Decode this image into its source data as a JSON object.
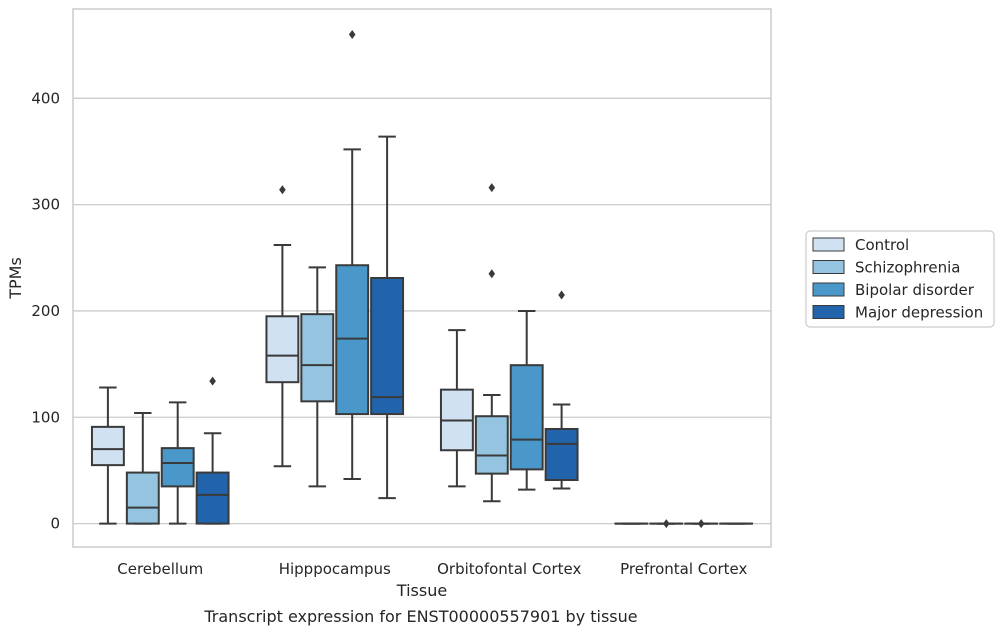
{
  "chart_data": {
    "type": "box",
    "xlabel": "Tissue",
    "ylabel": "TPMs",
    "caption": "Transcript expression for ENST00000557901 by tissue",
    "ylim": [
      -22,
      484
    ],
    "yticks": [
      0,
      100,
      200,
      300,
      400
    ],
    "grid": true,
    "legend_position": "right",
    "categories": [
      "Cerebellum",
      "Hipppocampus",
      "Orbitofontal Cortex",
      "Prefrontal Cortex"
    ],
    "series": [
      {
        "name": "Control",
        "color": "#d0e1f2",
        "boxes": [
          {
            "whislo": 0,
            "q1": 55,
            "med": 70,
            "q3": 91,
            "whishi": 128,
            "fliers": []
          },
          {
            "whislo": 54,
            "q1": 133,
            "med": 158,
            "q3": 195,
            "whishi": 262,
            "fliers": [
              314
            ]
          },
          {
            "whislo": 35,
            "q1": 69,
            "med": 97,
            "q3": 126,
            "whishi": 182,
            "fliers": []
          },
          {
            "whislo": 0,
            "q1": 0,
            "med": 0,
            "q3": 0,
            "whishi": 0,
            "fliers": []
          }
        ]
      },
      {
        "name": "Schizophrenia",
        "color": "#94c4df",
        "boxes": [
          {
            "whislo": 0,
            "q1": 0,
            "med": 15,
            "q3": 48,
            "whishi": 104,
            "fliers": []
          },
          {
            "whislo": 35,
            "q1": 115,
            "med": 149,
            "q3": 197,
            "whishi": 241,
            "fliers": []
          },
          {
            "whislo": 21,
            "q1": 47,
            "med": 64,
            "q3": 101,
            "whishi": 121,
            "fliers": [
              235,
              316
            ]
          },
          {
            "whislo": 0,
            "q1": 0,
            "med": 0,
            "q3": 0,
            "whishi": 0,
            "fliers": [
              0
            ]
          }
        ]
      },
      {
        "name": "Bipolar disorder",
        "color": "#4a98c9",
        "boxes": [
          {
            "whislo": 0,
            "q1": 35,
            "med": 57,
            "q3": 71,
            "whishi": 114,
            "fliers": []
          },
          {
            "whislo": 42,
            "q1": 103,
            "med": 174,
            "q3": 243,
            "whishi": 352,
            "fliers": [
              460
            ]
          },
          {
            "whislo": 32,
            "q1": 51,
            "med": 79,
            "q3": 149,
            "whishi": 200,
            "fliers": []
          },
          {
            "whislo": 0,
            "q1": 0,
            "med": 0,
            "q3": 0,
            "whishi": 0,
            "fliers": [
              0
            ]
          }
        ]
      },
      {
        "name": "Major depression",
        "color": "#2164ab",
        "boxes": [
          {
            "whislo": 0,
            "q1": 0,
            "med": 27,
            "q3": 48,
            "whishi": 85,
            "fliers": [
              134
            ]
          },
          {
            "whislo": 24,
            "q1": 103,
            "med": 119,
            "q3": 231,
            "whishi": 364,
            "fliers": []
          },
          {
            "whislo": 33,
            "q1": 41,
            "med": 75,
            "q3": 89,
            "whishi": 112,
            "fliers": [
              215
            ]
          },
          {
            "whislo": 0,
            "q1": 0,
            "med": 0,
            "q3": 0,
            "whishi": 0,
            "fliers": []
          }
        ]
      }
    ]
  }
}
